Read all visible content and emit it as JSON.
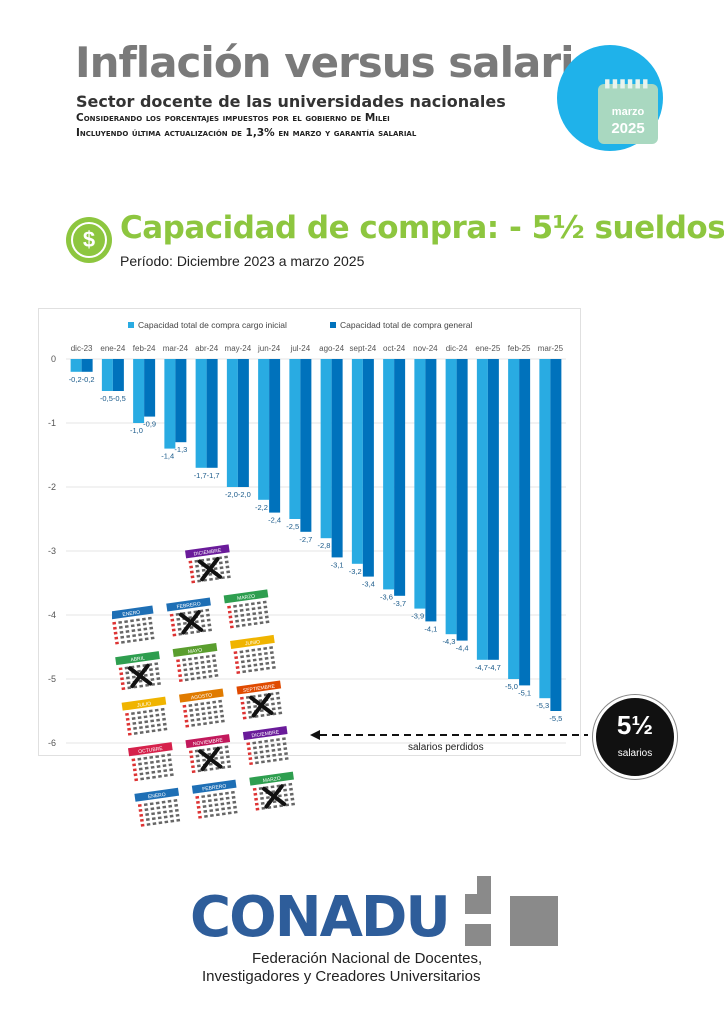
{
  "header": {
    "title": "Inflación versus salario",
    "subtitle": "Sector docente de las universidades nacionales",
    "note1": "Considerando los porcentajes impuestos por el gobierno de Milei",
    "note2": "Incluyendo última actualización de 1,3% en marzo y garantía salarial",
    "calendar_month": "marzo",
    "calendar_year": "2025",
    "badge_color": "#1fb2ea"
  },
  "headline": {
    "text": "Capacidad de compra: - 5½ sueldos",
    "icon": "dollar-icon",
    "color": "#8dc63f",
    "period": "Período: Diciembre 2023 a marzo 2025"
  },
  "chart_data": {
    "type": "bar",
    "categories": [
      "dic-23",
      "ene-24",
      "feb-24",
      "mar-24",
      "abr-24",
      "may-24",
      "jun-24",
      "jul-24",
      "ago-24",
      "sept-24",
      "oct-24",
      "nov-24",
      "dic-24",
      "ene-25",
      "feb-25",
      "mar-25"
    ],
    "series": [
      {
        "name": "Capacidad total de compra  cargo inicial",
        "color": "#29abe2",
        "values": [
          -0.2,
          -0.5,
          -1.0,
          -1.4,
          -1.7,
          -2.0,
          -2.2,
          -2.5,
          -2.8,
          -3.2,
          -3.6,
          -3.9,
          -4.3,
          -4.7,
          -5.0,
          -5.3
        ]
      },
      {
        "name": "Capacidad total de compra   general",
        "color": "#0072bc",
        "values": [
          -0.2,
          -0.5,
          -0.9,
          -1.3,
          -1.7,
          -2.0,
          -2.4,
          -2.7,
          -3.1,
          -3.4,
          -3.7,
          -4.1,
          -4.4,
          -4.7,
          -5.1,
          -5.5
        ]
      }
    ],
    "labels_1": [
      "-0,2",
      "-0,5",
      "-1,0",
      "-1,4",
      "-1,7",
      "-2,0",
      "-2,2",
      "-2,5",
      "-2,8",
      "-3,2",
      "-3,6",
      "-3,9",
      "-4,3",
      "-4,7",
      "-5,0",
      "-5,3"
    ],
    "labels_2": [
      "-0,2",
      "-0,5",
      "-0,9",
      "-1,3",
      "-1,7",
      "-2,0",
      "-2,4",
      "-2,7",
      "-3,1",
      "-3,4",
      "-3,7",
      "-4,1",
      "-4,4",
      "-4,7",
      "-5,1",
      "-5,5"
    ],
    "yticks": [
      "0",
      "-1",
      "-2",
      "-3",
      "-4",
      "-5",
      "-6"
    ],
    "ytick_values": [
      0,
      -1,
      -2,
      -3,
      -4,
      -5,
      -6
    ],
    "ylim": [
      -6,
      0
    ],
    "legend_position": "top",
    "grid": true
  },
  "annotation": {
    "lost_label": "salarios perdidos",
    "circle_big": "5½",
    "circle_small": "salarios"
  },
  "calendars": {
    "months": [
      "DICIEMBRE",
      "ENERO",
      "FEBRERO",
      "MARZO",
      "ABRIL",
      "MAYO",
      "JUNIO",
      "JULIO",
      "AGOSTO",
      "SEPTIEMBRE",
      "OCTUBRE",
      "NOVIEMBRE",
      "DICIEMBRE",
      "ENERO",
      "FEBRERO",
      "MARZO"
    ]
  },
  "footer": {
    "logo": "CONADU",
    "fed_line1": "Federación Nacional de Docentes,",
    "fed_line2": "Investigadores y Creadores Universitarios"
  }
}
